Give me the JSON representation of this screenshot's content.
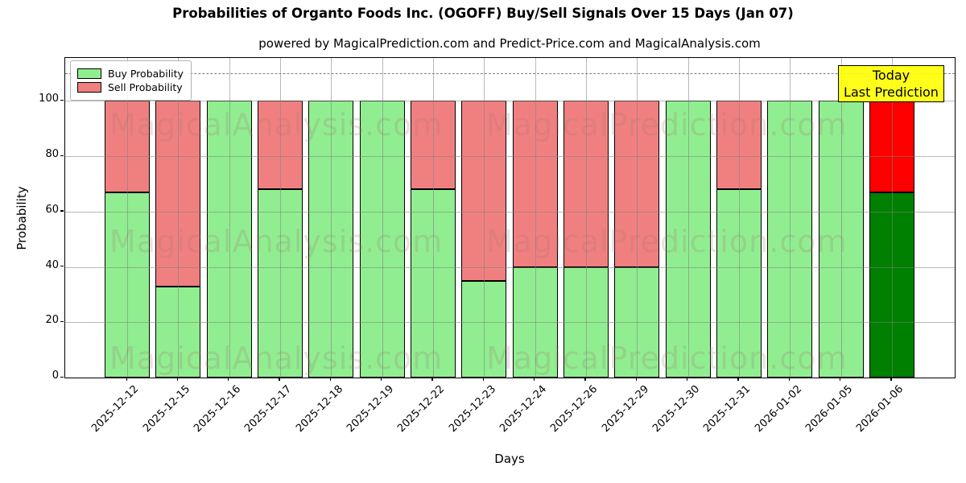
{
  "figure": {
    "title": "Probabilities of Organto Foods Inc. (OGOFF) Buy/Sell Signals Over 15 Days (Jan 07)",
    "subtitle": "powered by MagicalPrediction.com and Predict-Price.com and MagicalAnalysis.com"
  },
  "legend": {
    "items": [
      {
        "label": "Buy Probability",
        "color": "#90ee90"
      },
      {
        "label": "Sell Probability",
        "color": "#f08080"
      }
    ]
  },
  "annotation_box": {
    "line1": "Today",
    "line2": "Last Prediction",
    "bg": "#ffff00",
    "border": "#000000"
  },
  "watermarks": {
    "left_text": "MagicalAnalysis.com",
    "right_text": "MagicalPrediction.com"
  },
  "chart_data": {
    "type": "bar",
    "stacked": true,
    "title": "Probabilities of Organto Foods Inc. (OGOFF) Buy/Sell Signals Over 15 Days (Jan 07)",
    "xlabel": "Days",
    "ylabel": "Probability",
    "ylim": [
      0,
      115
    ],
    "yticks": [
      0,
      20,
      40,
      60,
      80,
      100
    ],
    "dashed_guide_y": 110,
    "grid": true,
    "legend_position": "upper left",
    "categories": [
      "2025-12-12",
      "2025-12-15",
      "2025-12-16",
      "2025-12-17",
      "2025-12-18",
      "2025-12-19",
      "2025-12-22",
      "2025-12-23",
      "2025-12-24",
      "2025-12-26",
      "2025-12-29",
      "2025-12-30",
      "2025-12-31",
      "2026-01-02",
      "2026-01-05",
      "2026-01-06"
    ],
    "series": [
      {
        "name": "Buy Probability",
        "color": "#90ee90",
        "values": [
          67,
          33,
          100,
          68,
          100,
          100,
          68,
          35,
          40,
          40,
          40,
          100,
          68,
          100,
          100,
          67
        ]
      },
      {
        "name": "Sell Probability",
        "color": "#f08080",
        "values": [
          33,
          67,
          0,
          32,
          0,
          0,
          32,
          65,
          60,
          60,
          60,
          0,
          32,
          0,
          0,
          33
        ]
      }
    ],
    "today": {
      "index": 15,
      "date": "2026-01-06",
      "buy_color": "#008000",
      "sell_color": "#ff0000"
    }
  }
}
